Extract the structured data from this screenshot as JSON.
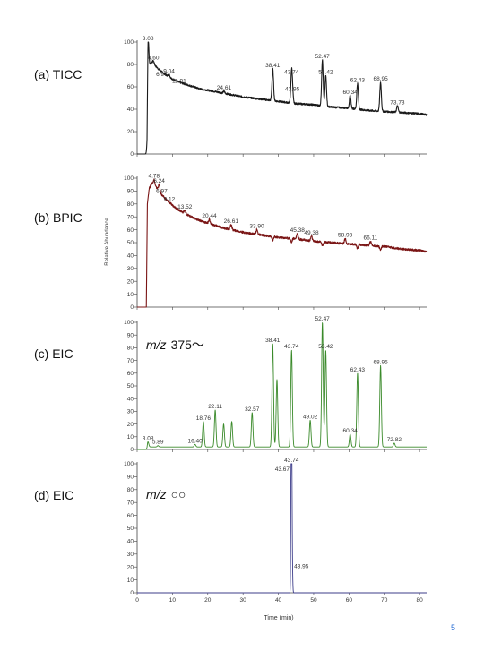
{
  "figure": {
    "y_axis_label": "Relative Abundance",
    "x_axis_label": "Time (min)",
    "footnote_mark": "5"
  },
  "chart_data": [
    {
      "id": "ticc",
      "type": "line",
      "panel_label": "(a) TICC",
      "color": "#1a1a1a",
      "xlim": [
        0,
        82
      ],
      "ylim": [
        0,
        100
      ],
      "x_ticks": [
        0,
        10,
        20,
        30,
        40,
        50,
        60,
        70,
        80
      ],
      "y_ticks": [
        0,
        20,
        40,
        60,
        80,
        100
      ],
      "show_x_tick_labels": false,
      "baseline": [
        [
          0,
          0
        ],
        [
          2.8,
          0
        ],
        [
          3.1,
          76
        ],
        [
          4,
          82
        ],
        [
          4.8,
          80
        ],
        [
          6,
          76
        ],
        [
          8,
          71
        ],
        [
          10,
          67
        ],
        [
          12,
          64
        ],
        [
          14,
          62
        ],
        [
          16,
          60
        ],
        [
          18,
          58
        ],
        [
          20,
          57
        ],
        [
          25,
          54
        ],
        [
          30,
          51
        ],
        [
          35,
          49
        ],
        [
          40,
          47
        ],
        [
          45,
          45
        ],
        [
          50,
          44
        ],
        [
          55,
          42
        ],
        [
          60,
          41
        ],
        [
          65,
          39
        ],
        [
          70,
          38
        ],
        [
          75,
          37
        ],
        [
          80,
          36
        ],
        [
          82,
          35
        ]
      ],
      "peaks": [
        {
          "rt": 3.08,
          "y": 100,
          "label": "3.08"
        },
        {
          "rt": 4.6,
          "y": 83,
          "label": "4.60"
        },
        {
          "rt": 6.97,
          "y": 68,
          "label": "6.97"
        },
        {
          "rt": 9.04,
          "y": 71,
          "label": "9.04"
        },
        {
          "rt": 11.91,
          "y": 62,
          "label": "11.91"
        },
        {
          "rt": 24.61,
          "y": 56,
          "label": "24.61"
        },
        {
          "rt": 38.41,
          "y": 76,
          "label": "38.41"
        },
        {
          "rt": 43.74,
          "y": 70,
          "label": "43.74"
        },
        {
          "rt": 43.95,
          "y": 55,
          "label": "43.95"
        },
        {
          "rt": 52.47,
          "y": 84,
          "label": "52.47"
        },
        {
          "rt": 53.42,
          "y": 70,
          "label": "53.42"
        },
        {
          "rt": 60.34,
          "y": 52,
          "label": "60.34"
        },
        {
          "rt": 62.43,
          "y": 63,
          "label": "62.43"
        },
        {
          "rt": 68.95,
          "y": 64,
          "label": "68.95"
        },
        {
          "rt": 73.73,
          "y": 43,
          "label": "73.73"
        }
      ]
    },
    {
      "id": "bpic",
      "type": "line",
      "panel_label": "(b) BPIC",
      "color": "#7a1515",
      "xlim": [
        0,
        82
      ],
      "ylim": [
        0,
        100
      ],
      "x_ticks": [
        0,
        10,
        20,
        30,
        40,
        50,
        60,
        70,
        80
      ],
      "y_ticks": [
        0,
        10,
        20,
        30,
        40,
        50,
        60,
        70,
        80,
        90,
        100
      ],
      "show_x_tick_labels": false,
      "baseline": [
        [
          0,
          0
        ],
        [
          2.6,
          0
        ],
        [
          2.9,
          80
        ],
        [
          3.4,
          92
        ],
        [
          4.2,
          96
        ],
        [
          5,
          94
        ],
        [
          6,
          91
        ],
        [
          7,
          87
        ],
        [
          8,
          84
        ],
        [
          10,
          79
        ],
        [
          12,
          75
        ],
        [
          14,
          72
        ],
        [
          16,
          69
        ],
        [
          18,
          67
        ],
        [
          20,
          65
        ],
        [
          25,
          61
        ],
        [
          30,
          58
        ],
        [
          35,
          56
        ],
        [
          40,
          54
        ],
        [
          45,
          53
        ],
        [
          50,
          51
        ],
        [
          55,
          50
        ],
        [
          60,
          49
        ],
        [
          65,
          48
        ],
        [
          70,
          47
        ],
        [
          75,
          45
        ],
        [
          80,
          44
        ],
        [
          82,
          43
        ]
      ],
      "peaks": [
        {
          "rt": 4.78,
          "y": 99,
          "label": "4.78"
        },
        {
          "rt": 6.24,
          "y": 95,
          "label": "6.24"
        },
        {
          "rt": 6.97,
          "y": 87,
          "label": "6.97"
        },
        {
          "rt": 9.12,
          "y": 81,
          "label": "9.12"
        },
        {
          "rt": 13.52,
          "y": 75,
          "label": "13.52"
        },
        {
          "rt": 20.44,
          "y": 68,
          "label": "20.44"
        },
        {
          "rt": 26.61,
          "y": 64,
          "label": "26.61"
        },
        {
          "rt": 33.9,
          "y": 60,
          "label": "33.90"
        },
        {
          "rt": 45.38,
          "y": 57,
          "label": "45.38"
        },
        {
          "rt": 49.38,
          "y": 55,
          "label": "49.38"
        },
        {
          "rt": 58.93,
          "y": 53,
          "label": "58.93"
        },
        {
          "rt": 66.11,
          "y": 51,
          "label": "66.11"
        }
      ]
    },
    {
      "id": "eic1",
      "type": "line",
      "panel_label": "(c) EIC",
      "mz_prefix": "m/z",
      "mz_value": "375～",
      "color": "#3a8a2a",
      "xlim": [
        0,
        82
      ],
      "ylim": [
        0,
        100
      ],
      "x_ticks": [
        0,
        10,
        20,
        30,
        40,
        50,
        60,
        70,
        80
      ],
      "y_ticks": [
        0,
        10,
        20,
        30,
        40,
        50,
        60,
        70,
        80,
        90,
        100
      ],
      "show_x_tick_labels": false,
      "baseline": [
        [
          0,
          0
        ],
        [
          2.8,
          0
        ],
        [
          3.0,
          2
        ],
        [
          82,
          2
        ]
      ],
      "peaks": [
        {
          "rt": 3.08,
          "y": 6,
          "label": "3.08"
        },
        {
          "rt": 5.89,
          "y": 3,
          "label": "5.89"
        },
        {
          "rt": 16.4,
          "y": 4,
          "label": "16.40"
        },
        {
          "rt": 18.76,
          "y": 22,
          "label": "18.76"
        },
        {
          "rt": 22.11,
          "y": 31,
          "label": "22.11"
        },
        {
          "rt": 24.5,
          "y": 20,
          "label": ""
        },
        {
          "rt": 26.8,
          "y": 22,
          "label": ""
        },
        {
          "rt": 32.57,
          "y": 29,
          "label": "32.57"
        },
        {
          "rt": 38.41,
          "y": 83,
          "label": "38.41"
        },
        {
          "rt": 39.6,
          "y": 55,
          "label": ""
        },
        {
          "rt": 43.74,
          "y": 78,
          "label": "43.74"
        },
        {
          "rt": 49.02,
          "y": 23,
          "label": "49.02"
        },
        {
          "rt": 52.47,
          "y": 100,
          "label": "52.47"
        },
        {
          "rt": 53.42,
          "y": 78,
          "label": "53.42"
        },
        {
          "rt": 60.34,
          "y": 12,
          "label": "60.34"
        },
        {
          "rt": 62.43,
          "y": 60,
          "label": "62.43"
        },
        {
          "rt": 68.95,
          "y": 66,
          "label": "68.95"
        },
        {
          "rt": 72.82,
          "y": 5,
          "label": "72.82"
        }
      ]
    },
    {
      "id": "eic2",
      "type": "line",
      "panel_label": "(d) EIC",
      "mz_prefix": "m/z",
      "mz_value": "○○",
      "color": "#3d3d8a",
      "xlim": [
        0,
        82
      ],
      "ylim": [
        0,
        100
      ],
      "x_ticks": [
        0,
        10,
        20,
        30,
        40,
        50,
        60,
        70,
        80
      ],
      "y_ticks": [
        0,
        10,
        20,
        30,
        40,
        50,
        60,
        70,
        80,
        90,
        100
      ],
      "show_x_tick_labels": true,
      "baseline": [
        [
          0,
          0
        ],
        [
          82,
          0
        ]
      ],
      "peaks": [
        {
          "rt": 43.74,
          "y": 100,
          "label": "43.74"
        },
        {
          "rt": 43.67,
          "y": 96,
          "label": "43.67"
        },
        {
          "rt": 43.95,
          "y": 19,
          "label": "43.95"
        }
      ]
    }
  ]
}
